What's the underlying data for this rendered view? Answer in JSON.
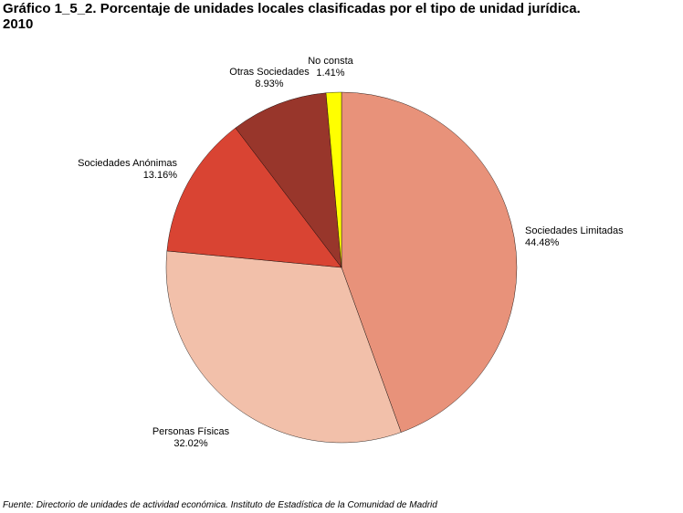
{
  "chart_data": {
    "type": "pie",
    "title": "Gráfico 1_5_2. Porcentaje de unidades locales clasificadas por el tipo de unidad jurídica.",
    "subtitle": "2010",
    "start_angle": "12 o'clock, clockwise",
    "slices": [
      {
        "label": "Sociedades Limitadas",
        "value": 44.48,
        "value_label": "44.48%",
        "color": "#E8927A"
      },
      {
        "label": "Personas Físicas",
        "value": 32.02,
        "value_label": "32.02%",
        "color": "#F2C0AA"
      },
      {
        "label": "Sociedades Anónimas",
        "value": 13.16,
        "value_label": "13.16%",
        "color": "#D94433"
      },
      {
        "label": "Otras Sociedades",
        "value": 8.93,
        "value_label": "8.93%",
        "color": "#98362B"
      },
      {
        "label": "No consta",
        "value": 1.41,
        "value_label": "1.41%",
        "color": "#FFFF00"
      }
    ]
  },
  "footer": "Fuente: Directorio de unidades de actividad económica. Instituto de Estadística de la Comunidad de Madrid"
}
